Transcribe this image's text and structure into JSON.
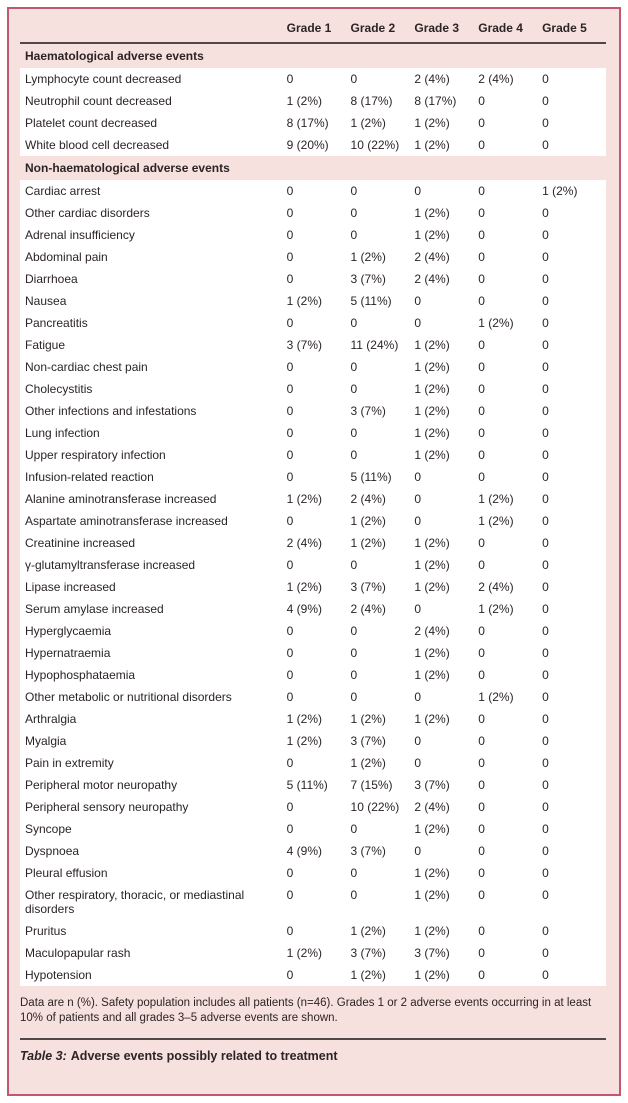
{
  "colors": {
    "card_border": "#c4566f",
    "card_background": "#f7e1de",
    "row_background": "#ffffff",
    "rule": "#4f4748",
    "text": "#2b2426"
  },
  "table": {
    "columns": [
      "Grade 1",
      "Grade 2",
      "Grade 3",
      "Grade 4",
      "Grade 5"
    ],
    "sections": [
      {
        "title": "Haematological adverse events",
        "rows": [
          {
            "label": "Lymphocyte count decreased",
            "values": [
              "0",
              "0",
              "2 (4%)",
              "2 (4%)",
              "0"
            ]
          },
          {
            "label": "Neutrophil count decreased",
            "values": [
              "1 (2%)",
              "8 (17%)",
              "8 (17%)",
              "0",
              "0"
            ]
          },
          {
            "label": "Platelet count decreased",
            "values": [
              "8 (17%)",
              "1 (2%)",
              "1 (2%)",
              "0",
              "0"
            ]
          },
          {
            "label": "White blood cell decreased",
            "values": [
              "9 (20%)",
              "10 (22%)",
              "1 (2%)",
              "0",
              "0"
            ]
          }
        ]
      },
      {
        "title": "Non-haematological adverse events",
        "rows": [
          {
            "label": "Cardiac arrest",
            "values": [
              "0",
              "0",
              "0",
              "0",
              "1 (2%)"
            ]
          },
          {
            "label": "Other cardiac disorders",
            "values": [
              "0",
              "0",
              "1 (2%)",
              "0",
              "0"
            ]
          },
          {
            "label": "Adrenal insufficiency",
            "values": [
              "0",
              "0",
              "1 (2%)",
              "0",
              "0"
            ]
          },
          {
            "label": "Abdominal pain",
            "values": [
              "0",
              "1 (2%)",
              "2 (4%)",
              "0",
              "0"
            ]
          },
          {
            "label": "Diarrhoea",
            "values": [
              "0",
              "3 (7%)",
              "2 (4%)",
              "0",
              "0"
            ]
          },
          {
            "label": "Nausea",
            "values": [
              "1 (2%)",
              "5 (11%)",
              "0",
              "0",
              "0"
            ]
          },
          {
            "label": "Pancreatitis",
            "values": [
              "0",
              "0",
              "0",
              "1 (2%)",
              "0"
            ]
          },
          {
            "label": "Fatigue",
            "values": [
              "3 (7%)",
              "11 (24%)",
              "1 (2%)",
              "0",
              "0"
            ]
          },
          {
            "label": "Non-cardiac chest pain",
            "values": [
              "0",
              "0",
              "1 (2%)",
              "0",
              "0"
            ]
          },
          {
            "label": "Cholecystitis",
            "values": [
              "0",
              "0",
              "1 (2%)",
              "0",
              "0"
            ]
          },
          {
            "label": "Other infections and infestations",
            "values": [
              "0",
              "3 (7%)",
              "1 (2%)",
              "0",
              "0"
            ]
          },
          {
            "label": "Lung infection",
            "values": [
              "0",
              "0",
              "1 (2%)",
              "0",
              "0"
            ]
          },
          {
            "label": "Upper respiratory infection",
            "values": [
              "0",
              "0",
              "1 (2%)",
              "0",
              "0"
            ]
          },
          {
            "label": "Infusion-related reaction",
            "values": [
              "0",
              "5 (11%)",
              "0",
              "0",
              "0"
            ]
          },
          {
            "label": "Alanine aminotransferase increased",
            "values": [
              "1 (2%)",
              "2 (4%)",
              "0",
              "1 (2%)",
              "0"
            ]
          },
          {
            "label": "Aspartate aminotransferase increased",
            "values": [
              "0",
              "1 (2%)",
              "0",
              "1 (2%)",
              "0"
            ]
          },
          {
            "label": "Creatinine increased",
            "values": [
              "2 (4%)",
              "1 (2%)",
              "1 (2%)",
              "0",
              "0"
            ]
          },
          {
            "label": "γ-glutamyltransferase increased",
            "values": [
              "0",
              "0",
              "1 (2%)",
              "0",
              "0"
            ]
          },
          {
            "label": "Lipase increased",
            "values": [
              "1 (2%)",
              "3 (7%)",
              "1 (2%)",
              "2 (4%)",
              "0"
            ]
          },
          {
            "label": "Serum amylase increased",
            "values": [
              "4 (9%)",
              "2 (4%)",
              "0",
              "1 (2%)",
              "0"
            ]
          },
          {
            "label": "Hyperglycaemia",
            "values": [
              "0",
              "0",
              "2 (4%)",
              "0",
              "0"
            ]
          },
          {
            "label": "Hypernatraemia",
            "values": [
              "0",
              "0",
              "1 (2%)",
              "0",
              "0"
            ]
          },
          {
            "label": "Hypophosphataemia",
            "values": [
              "0",
              "0",
              "1 (2%)",
              "0",
              "0"
            ]
          },
          {
            "label": "Other metabolic or nutritional disorders",
            "values": [
              "0",
              "0",
              "0",
              "1 (2%)",
              "0"
            ]
          },
          {
            "label": "Arthralgia",
            "values": [
              "1 (2%)",
              "1 (2%)",
              "1 (2%)",
              "0",
              "0"
            ]
          },
          {
            "label": "Myalgia",
            "values": [
              "1 (2%)",
              "3 (7%)",
              "0",
              "0",
              "0"
            ]
          },
          {
            "label": "Pain in extremity",
            "values": [
              "0",
              "1 (2%)",
              "0",
              "0",
              "0"
            ]
          },
          {
            "label": "Peripheral motor neuropathy",
            "values": [
              "5 (11%)",
              "7 (15%)",
              "3 (7%)",
              "0",
              "0"
            ]
          },
          {
            "label": "Peripheral sensory neuropathy",
            "values": [
              "0",
              "10 (22%)",
              "2 (4%)",
              "0",
              "0"
            ]
          },
          {
            "label": "Syncope",
            "values": [
              "0",
              "0",
              "1 (2%)",
              "0",
              "0"
            ]
          },
          {
            "label": "Dyspnoea",
            "values": [
              "4 (9%)",
              "3 (7%)",
              "0",
              "0",
              "0"
            ]
          },
          {
            "label": "Pleural effusion",
            "values": [
              "0",
              "0",
              "1 (2%)",
              "0",
              "0"
            ]
          },
          {
            "label": "Other respiratory, thoracic, or mediastinal disorders",
            "values": [
              "0",
              "0",
              "1 (2%)",
              "0",
              "0"
            ]
          },
          {
            "label": "Pruritus",
            "values": [
              "0",
              "1 (2%)",
              "1 (2%)",
              "0",
              "0"
            ]
          },
          {
            "label": "Maculopapular rash",
            "values": [
              "1 (2%)",
              "3 (7%)",
              "3 (7%)",
              "0",
              "0"
            ]
          },
          {
            "label": "Hypotension",
            "values": [
              "0",
              "1 (2%)",
              "1 (2%)",
              "0",
              "0"
            ]
          }
        ]
      }
    ],
    "footnote": "Data are n (%). Safety population includes all patients (n=46). Grades 1 or 2 adverse events occurring in at least 10% of patients and all grades 3–5 adverse events are shown.",
    "caption_prefix": "Table 3:",
    "caption_title": "Adverse events possibly related to treatment"
  }
}
